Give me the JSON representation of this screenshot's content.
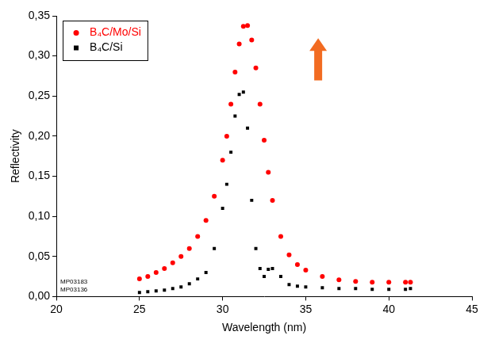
{
  "chart_data": {
    "type": "scatter",
    "x_label": "Wavelength (nm)",
    "y_label": "Reflectivity",
    "annotations": [
      "MP03183",
      "MP03136"
    ],
    "x": [
      25,
      25.5,
      26,
      26.5,
      27,
      27.5,
      28,
      28.5,
      29,
      29.5,
      30,
      30.25,
      30.5,
      30.75,
      31,
      31.25,
      31.5,
      31.75,
      32,
      32.25,
      32.5,
      32.75,
      33,
      33.5,
      34,
      34.5,
      35,
      36,
      37,
      38,
      39,
      40,
      41,
      41.3
    ],
    "series": [
      {
        "name": "B₄C/Mo/Si",
        "color": "#ff0000",
        "marker": "circle",
        "values": [
          0.022,
          0.025,
          0.03,
          0.035,
          0.042,
          0.05,
          0.06,
          0.075,
          0.095,
          0.125,
          0.17,
          0.2,
          0.24,
          0.28,
          0.315,
          0.337,
          0.338,
          0.32,
          0.285,
          0.24,
          0.195,
          0.155,
          0.12,
          0.075,
          0.052,
          0.04,
          0.033,
          0.025,
          0.021,
          0.019,
          0.018,
          0.018,
          0.018,
          0.018
        ]
      },
      {
        "name": "B₄C/Si",
        "color": "#000000",
        "marker": "square",
        "values": [
          0.005,
          0.006,
          0.007,
          0.008,
          0.01,
          0.012,
          0.016,
          0.022,
          0.03,
          0.06,
          0.11,
          0.14,
          0.18,
          0.225,
          0.252,
          0.255,
          0.21,
          0.12,
          0.06,
          0.035,
          0.025,
          0.034,
          0.035,
          0.025,
          0.015,
          0.013,
          0.012,
          0.011,
          0.01,
          0.01,
          0.009,
          0.009,
          0.009,
          0.01
        ]
      }
    ],
    "xlim": [
      20,
      45
    ],
    "xticks": [
      20,
      25,
      30,
      35,
      40,
      45
    ],
    "ylim": [
      0,
      0.35
    ],
    "yticks": [
      {
        "value": 0,
        "label": "0,00"
      },
      {
        "value": 0.05,
        "label": "0,05"
      },
      {
        "value": 0.1,
        "label": "0,10"
      },
      {
        "value": 0.15,
        "label": "0,15"
      },
      {
        "value": 0.2,
        "label": "0,20"
      },
      {
        "value": 0.25,
        "label": "0,25"
      },
      {
        "value": 0.3,
        "label": "0,30"
      },
      {
        "value": 0.35,
        "label": "0,35"
      }
    ],
    "grid": false,
    "legend": "upper left"
  }
}
